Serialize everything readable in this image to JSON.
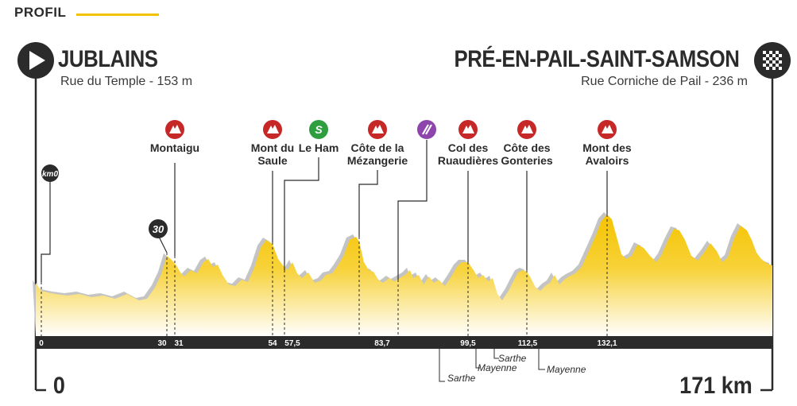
{
  "header": {
    "title": "PROFIL"
  },
  "colors": {
    "accent": "#f2c200",
    "climb": "#c62828",
    "sprint": "#2e9e3e",
    "feed": "#8e44ad",
    "bar": "#2b2b2b",
    "profile_fill": "#f5c400",
    "profile_shadow": "#bdbdbd"
  },
  "start": {
    "city": "JUBLAINS",
    "street": "Rue du Temple - 153 m",
    "icon": "play-icon",
    "km": "0"
  },
  "finish": {
    "city": "PRÉ-EN-PAIL-SAINT-SAMSON",
    "street": "Rue Corniche de Pail - 236 m",
    "icon": "checkered-flag-icon",
    "km": "171 km"
  },
  "badges": [
    {
      "label": "km0",
      "kind": "km0"
    },
    {
      "label": "30",
      "kind": "km30"
    }
  ],
  "points": [
    {
      "name": "Montaigu",
      "type": "climb",
      "icon": "mountain-icon",
      "km": "31"
    },
    {
      "name": "Mont du\nSaule",
      "type": "climb",
      "icon": "mountain-icon",
      "km": "54"
    },
    {
      "name": "Le Ham",
      "type": "sprint",
      "icon": "sprint-icon",
      "km": "57,5"
    },
    {
      "name": "Côte de la\nMézangerie",
      "type": "climb",
      "icon": "mountain-icon",
      "km": ""
    },
    {
      "name": "",
      "type": "feed",
      "icon": "feed-zone-icon",
      "km": "83,7"
    },
    {
      "name": "Col des\nRuaudières",
      "type": "climb",
      "icon": "mountain-icon",
      "km": "99,5"
    },
    {
      "name": "Côte des\nGonteries",
      "type": "climb",
      "icon": "mountain-icon",
      "km": "112,5"
    },
    {
      "name": "Mont des\nAvaloirs",
      "type": "climb",
      "icon": "mountain-icon",
      "km": "132,1"
    }
  ],
  "axis_labels": [
    "0",
    "30",
    "31",
    "54",
    "57,5",
    "83,7",
    "99,5",
    "112,5",
    "132,1"
  ],
  "departments": [
    "Sarthe",
    "Mayenne",
    "Sarthe",
    "Mayenne"
  ]
}
